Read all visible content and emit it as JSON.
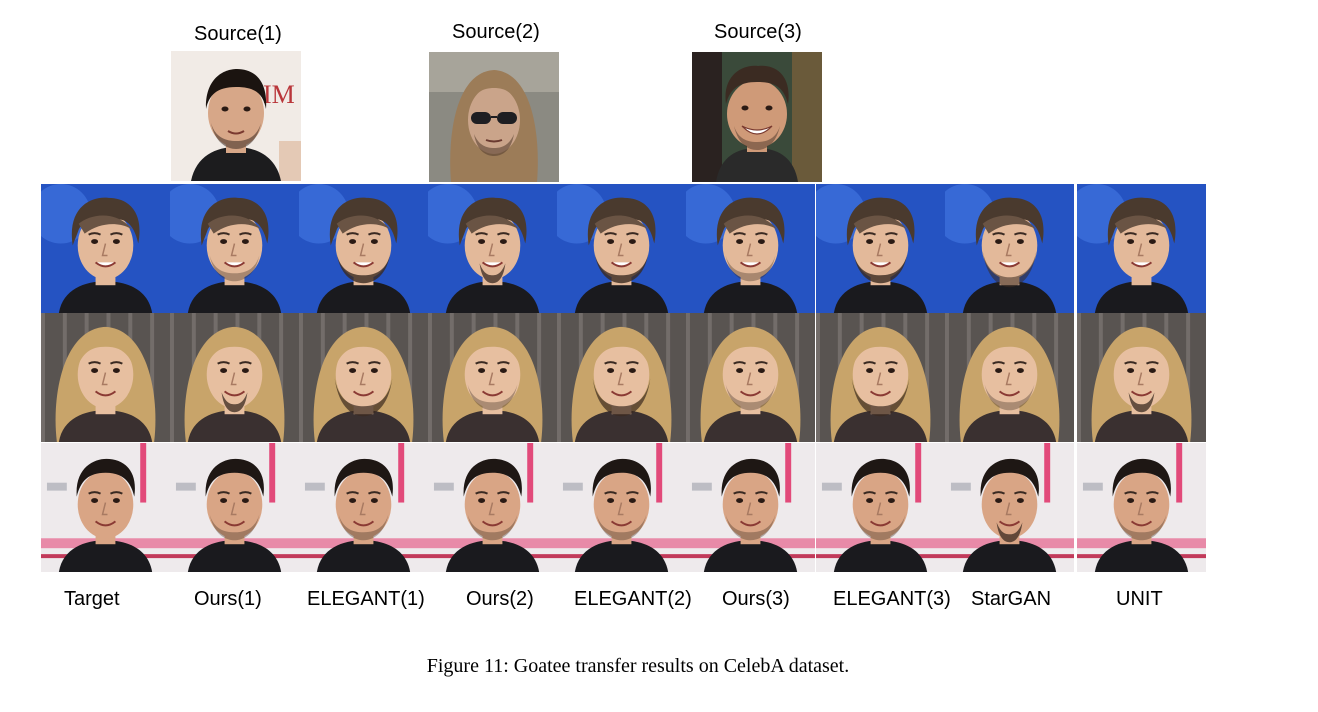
{
  "source_labels": [
    "Source(1)",
    "Source(2)",
    "Source(3)"
  ],
  "column_labels": [
    "Target",
    "Ours(1)",
    "ELEGANT(1)",
    "Ours(2)",
    "ELEGANT(2)",
    "Ours(3)",
    "ELEGANT(3)",
    "StarGAN",
    "UNIT"
  ],
  "caption": "Figure 11: Goatee transfer results on CelebA dataset.",
  "rows": [
    {
      "subject": "young-man-brown-hair",
      "background": "#2a5fd0",
      "hair": "#4a3a2e",
      "skin": "#e3b99a",
      "beards": [
        "none",
        "light",
        "dark",
        "goatee",
        "dark",
        "light",
        "dark",
        "full-light",
        "none"
      ]
    },
    {
      "subject": "blonde-woman",
      "background": "#6f6a66",
      "hair": "#c8a46a",
      "skin": "#e7bfa0",
      "beards": [
        "none",
        "goatee",
        "full",
        "light",
        "full",
        "light",
        "full",
        "light",
        "goatee"
      ]
    },
    {
      "subject": "dark-haired-man",
      "background": "#eeeaec",
      "hair": "#1e1714",
      "skin": "#d9a585",
      "beards": [
        "none",
        "light",
        "light",
        "light",
        "light",
        "light",
        "light",
        "goatee",
        "light"
      ]
    }
  ],
  "sources": [
    {
      "background": "#f1ebe6",
      "hair": "#1b1410",
      "skin": "#d7a788",
      "beard": "light"
    },
    {
      "background": "#8b8a82",
      "hair": "#9c7c58",
      "skin": "#caa48a",
      "beard": "light",
      "glasses": true
    },
    {
      "background": "#3a4a3a",
      "hair": "#3b2b22",
      "skin": "#cf9a78",
      "beard": "light"
    }
  ]
}
